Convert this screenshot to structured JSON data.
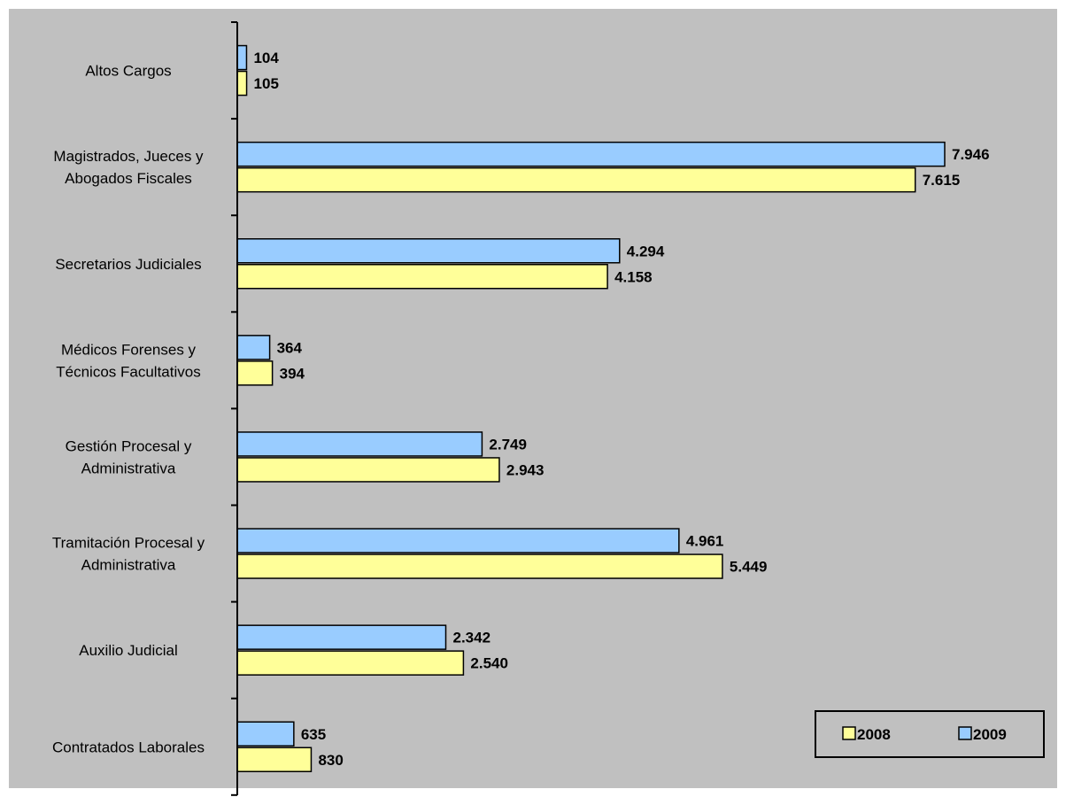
{
  "chart_data": {
    "type": "bar",
    "orientation": "horizontal",
    "categories": [
      [
        "Altos Cargos"
      ],
      [
        "Magistrados, Jueces y",
        "Abogados Fiscales"
      ],
      [
        "Secretarios Judiciales"
      ],
      [
        "Médicos Forenses y",
        "Técnicos Facultativos"
      ],
      [
        "Gestión Procesal y",
        "Administrativa"
      ],
      [
        "Tramitación Procesal y",
        "Administrativa"
      ],
      [
        "Auxilio Judicial"
      ],
      [
        "Contratados Laborales"
      ]
    ],
    "series": [
      {
        "name": "2009",
        "color": "#99CCFF",
        "values": [
          104,
          7946,
          4294,
          364,
          2749,
          4961,
          2342,
          635
        ],
        "labels": [
          "104",
          "7.946",
          "4.294",
          "364",
          "2.749",
          "4.961",
          "2.342",
          "635"
        ]
      },
      {
        "name": "2008",
        "color": "#FFFF99",
        "values": [
          105,
          7615,
          4158,
          394,
          2943,
          5449,
          2540,
          830
        ],
        "labels": [
          "105",
          "7.615",
          "4.158",
          "394",
          "2.943",
          "5.449",
          "2.540",
          "830"
        ]
      }
    ],
    "xlim": [
      0,
      8500
    ],
    "grid": false,
    "legend": {
      "position": "bottom-right",
      "order": [
        "2008",
        "2009"
      ]
    },
    "background": "#C0C0C0"
  }
}
